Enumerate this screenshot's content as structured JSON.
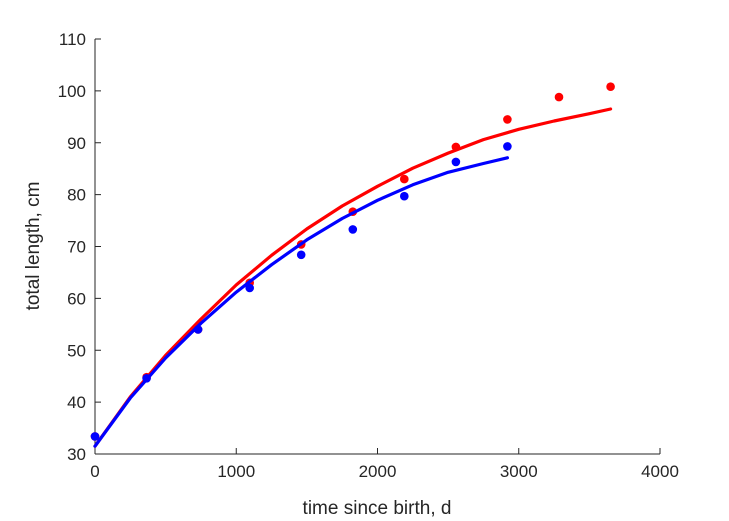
{
  "chart_data": {
    "type": "scatter",
    "title": "",
    "xlabel": "time since birth, d",
    "ylabel": "total length, cm",
    "xlim": [
      0,
      4000
    ],
    "ylim": [
      30,
      110
    ],
    "xticks": [
      0,
      1000,
      2000,
      3000,
      4000
    ],
    "yticks": [
      30,
      40,
      50,
      60,
      70,
      80,
      90,
      100,
      110
    ],
    "xtick_labels": [
      "0",
      "1000",
      "2000",
      "3000",
      "4000"
    ],
    "ytick_labels": [
      "30",
      "40",
      "50",
      "60",
      "70",
      "80",
      "90",
      "100",
      "110"
    ],
    "grid": false,
    "legend": "none",
    "series": [
      {
        "color": "#ff0000",
        "points": {
          "x": [
            0,
            365,
            730,
            1095,
            1460,
            1825,
            2190,
            2555,
            2920,
            3285,
            3650
          ],
          "y": [
            33.4,
            44.8,
            54.0,
            63.0,
            70.4,
            76.7,
            83.0,
            89.2,
            94.5,
            98.8,
            100.8
          ]
        },
        "curve": {
          "x": [
            0,
            250,
            500,
            750,
            1000,
            1250,
            1500,
            1750,
            2000,
            2250,
            2500,
            2750,
            3000,
            3250,
            3500,
            3650
          ],
          "y": [
            31.5,
            41.0,
            49.0,
            56.0,
            62.6,
            68.3,
            73.4,
            77.8,
            81.6,
            85.1,
            88.0,
            90.6,
            92.6,
            94.2,
            95.6,
            96.5
          ]
        }
      },
      {
        "color": "#0000ff",
        "points": {
          "x": [
            0,
            365,
            730,
            1095,
            1460,
            1825,
            2190,
            2555,
            2920
          ],
          "y": [
            33.4,
            44.6,
            54.0,
            62.0,
            68.4,
            73.3,
            79.7,
            86.3,
            89.3
          ]
        },
        "curve": {
          "x": [
            0,
            250,
            500,
            750,
            1000,
            1250,
            1500,
            1750,
            2000,
            2250,
            2500,
            2750,
            2920
          ],
          "y": [
            31.5,
            40.8,
            48.5,
            55.2,
            61.2,
            66.5,
            71.3,
            75.4,
            78.9,
            81.9,
            84.3,
            86.0,
            87.1
          ]
        }
      }
    ]
  }
}
